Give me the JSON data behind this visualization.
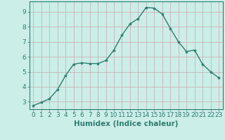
{
  "x": [
    0,
    1,
    2,
    3,
    4,
    5,
    6,
    7,
    8,
    9,
    10,
    11,
    12,
    13,
    14,
    15,
    16,
    17,
    18,
    19,
    20,
    21,
    22,
    23
  ],
  "y": [
    2.75,
    2.95,
    3.2,
    3.8,
    4.75,
    5.5,
    5.6,
    5.55,
    5.55,
    5.75,
    6.45,
    7.45,
    8.2,
    8.55,
    9.3,
    9.25,
    8.85,
    7.9,
    7.0,
    6.35,
    6.45,
    5.5,
    5.0,
    4.6
  ],
  "line_color": "#2e7d6e",
  "marker": "*",
  "marker_size": 3,
  "bg_color": "#cceee8",
  "grid_color_h": "#c9a9a9",
  "grid_color_v": "#c9a9a9",
  "xlabel": "Humidex (Indice chaleur)",
  "xlim": [
    -0.5,
    23.5
  ],
  "ylim": [
    2.5,
    9.7
  ],
  "yticks": [
    3,
    4,
    5,
    6,
    7,
    8,
    9
  ],
  "xticks": [
    0,
    1,
    2,
    3,
    4,
    5,
    6,
    7,
    8,
    9,
    10,
    11,
    12,
    13,
    14,
    15,
    16,
    17,
    18,
    19,
    20,
    21,
    22,
    23
  ],
  "xlabel_fontsize": 7.5,
  "tick_fontsize": 6.5,
  "line_width": 1.0,
  "spine_color": "#2e7d6e",
  "tick_color": "#2e7d6e",
  "label_color": "#2e7d6e"
}
